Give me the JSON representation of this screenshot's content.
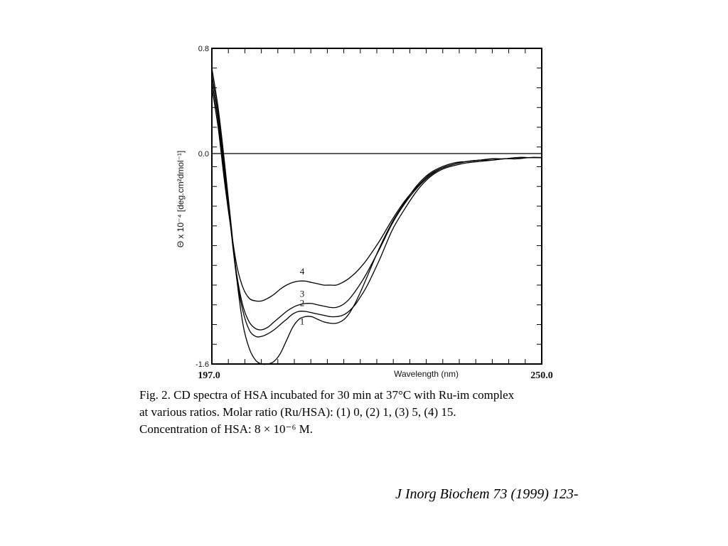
{
  "chart_data": {
    "type": "line",
    "title": "",
    "xlabel": "Wavelength (nm)",
    "ylabel": "Θ x 10⁻⁴ [deg.cm²dmol⁻¹]",
    "xlim": [
      197.0,
      250.0
    ],
    "ylim": [
      -1.6,
      0.8
    ],
    "x_range_labels": [
      "197.0",
      "250.0"
    ],
    "y_tick_labels": [
      {
        "value": 0.8,
        "label": "0.8"
      },
      {
        "value": 0.0,
        "label": "0.0"
      },
      {
        "value": -1.6,
        "label": "-1.6"
      }
    ],
    "zero_line": true,
    "grid": false,
    "x": [
      197,
      198,
      199,
      200,
      201,
      202,
      203,
      204,
      205,
      206,
      207,
      208,
      209,
      210,
      211,
      212,
      213,
      214,
      215,
      216,
      217,
      218,
      219,
      220,
      221,
      222,
      224,
      226,
      228,
      230,
      232,
      234,
      236,
      238,
      240,
      242,
      244,
      246,
      248,
      250
    ],
    "series": [
      {
        "name": "1",
        "values": [
          0.65,
          0.35,
          -0.05,
          -0.5,
          -0.95,
          -1.3,
          -1.48,
          -1.57,
          -1.6,
          -1.6,
          -1.58,
          -1.52,
          -1.42,
          -1.32,
          -1.26,
          -1.24,
          -1.24,
          -1.26,
          -1.28,
          -1.29,
          -1.29,
          -1.27,
          -1.22,
          -1.14,
          -1.04,
          -0.93,
          -0.71,
          -0.52,
          -0.37,
          -0.24,
          -0.15,
          -0.1,
          -0.07,
          -0.06,
          -0.05,
          -0.04,
          -0.04,
          -0.03,
          -0.03,
          -0.03
        ]
      },
      {
        "name": "2",
        "values": [
          0.6,
          0.3,
          -0.1,
          -0.55,
          -0.95,
          -1.2,
          -1.34,
          -1.39,
          -1.39,
          -1.37,
          -1.34,
          -1.3,
          -1.26,
          -1.22,
          -1.2,
          -1.2,
          -1.21,
          -1.22,
          -1.23,
          -1.24,
          -1.24,
          -1.23,
          -1.2,
          -1.15,
          -1.08,
          -1.0,
          -0.8,
          -0.58,
          -0.42,
          -0.28,
          -0.18,
          -0.12,
          -0.09,
          -0.07,
          -0.06,
          -0.05,
          -0.04,
          -0.04,
          -0.03,
          -0.03
        ]
      },
      {
        "name": "3",
        "values": [
          0.55,
          0.25,
          -0.15,
          -0.55,
          -0.92,
          -1.16,
          -1.28,
          -1.33,
          -1.34,
          -1.32,
          -1.28,
          -1.24,
          -1.2,
          -1.17,
          -1.15,
          -1.14,
          -1.14,
          -1.15,
          -1.16,
          -1.17,
          -1.17,
          -1.15,
          -1.11,
          -1.05,
          -0.98,
          -0.9,
          -0.72,
          -0.53,
          -0.38,
          -0.26,
          -0.17,
          -0.11,
          -0.08,
          -0.06,
          -0.05,
          -0.05,
          -0.04,
          -0.04,
          -0.03,
          -0.03
        ]
      },
      {
        "name": "4",
        "values": [
          0.5,
          0.2,
          -0.2,
          -0.55,
          -0.85,
          -1.02,
          -1.1,
          -1.12,
          -1.12,
          -1.1,
          -1.07,
          -1.03,
          -1.0,
          -0.98,
          -0.97,
          -0.97,
          -0.98,
          -0.99,
          -1.0,
          -1.0,
          -1.0,
          -0.98,
          -0.95,
          -0.91,
          -0.86,
          -0.8,
          -0.66,
          -0.5,
          -0.36,
          -0.25,
          -0.16,
          -0.11,
          -0.08,
          -0.06,
          -0.05,
          -0.04,
          -0.04,
          -0.03,
          -0.03,
          -0.03
        ]
      }
    ],
    "curve_labels": [
      {
        "series": "4",
        "text": "4",
        "x": 211.5,
        "y": -0.92
      },
      {
        "series": "3",
        "text": "3",
        "x": 211.5,
        "y": -1.09
      },
      {
        "series": "2",
        "text": "2",
        "x": 211.5,
        "y": -1.16
      },
      {
        "series": "1",
        "text": "1",
        "x": 211.5,
        "y": -1.3
      }
    ],
    "colors": {
      "line": "#000000",
      "frame": "#000000"
    }
  },
  "caption": {
    "lines": [
      "Fig. 2. CD spectra of HSA incubated for 30 min at 37°C with Ru-im complex",
      "at various ratios. Molar ratio (Ru/HSA): (1) 0, (2) 1, (3) 5, (4) 15.",
      "Concentration of HSA: 8 × 10⁻⁶ M."
    ]
  },
  "citation": "J Inorg Biochem 73 (1999) 123-"
}
